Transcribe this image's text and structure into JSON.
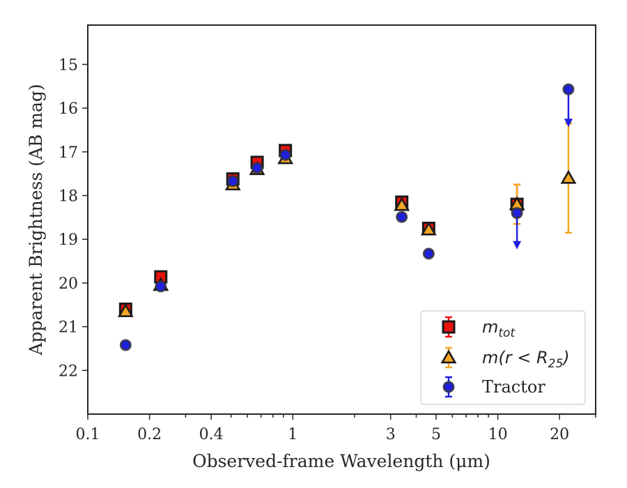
{
  "chart_data": {
    "type": "scatter",
    "xlabel": "Observed-frame Wavelength (μm)",
    "ylabel": "Apparent Brightness (AB mag)",
    "xscale": "log",
    "xlim": [
      0.1,
      30
    ],
    "ylim": [
      23,
      14.1
    ],
    "y_inverted": true,
    "grid": false,
    "legend_placement": "lower-right",
    "x_ticks": [
      {
        "value": 0.1,
        "label": "0.1"
      },
      {
        "value": 0.2,
        "label": "0.2"
      },
      {
        "value": 0.4,
        "label": "0.4"
      },
      {
        "value": 1,
        "label": "1"
      },
      {
        "value": 3,
        "label": "3"
      },
      {
        "value": 5,
        "label": "5"
      },
      {
        "value": 10,
        "label": "10"
      },
      {
        "value": 20,
        "label": "20"
      }
    ],
    "x_minor_ticks": [
      0.3,
      0.5,
      0.6,
      0.7,
      0.8,
      0.9,
      2,
      4,
      6,
      7,
      8,
      9,
      30
    ],
    "y_ticks": [
      {
        "value": 15,
        "label": "15"
      },
      {
        "value": 16,
        "label": "16"
      },
      {
        "value": 17,
        "label": "17"
      },
      {
        "value": 18,
        "label": "18"
      },
      {
        "value": 19,
        "label": "19"
      },
      {
        "value": 20,
        "label": "20"
      },
      {
        "value": 21,
        "label": "21"
      },
      {
        "value": 22,
        "label": "22"
      }
    ],
    "series": [
      {
        "name": "m_tot",
        "legend_main": "m",
        "legend_sub": "tot",
        "marker": "square",
        "color": "#e8130f",
        "edge": "#1a1a1a",
        "points": [
          {
            "x": 0.153,
            "y": 20.6,
            "err": 0.08
          },
          {
            "x": 0.227,
            "y": 19.86,
            "err": 0.07
          },
          {
            "x": 0.51,
            "y": 17.62,
            "err": 0.05
          },
          {
            "x": 0.67,
            "y": 17.24,
            "err": 0.05
          },
          {
            "x": 0.92,
            "y": 16.97,
            "err": 0.05
          },
          {
            "x": 3.4,
            "y": 18.15,
            "err": 0.05
          },
          {
            "x": 4.6,
            "y": 18.75,
            "err": 0.05
          },
          {
            "x": 12.4,
            "y": 18.2,
            "err": 0.45
          }
        ]
      },
      {
        "name": "m(r<R25)",
        "legend_main": "m(r < R",
        "legend_sub": "25",
        "legend_tail": ")",
        "marker": "triangle",
        "color": "#f5a623",
        "edge": "#1a1a1a",
        "points": [
          {
            "x": 0.153,
            "y": 20.65,
            "err": 0.05
          },
          {
            "x": 0.227,
            "y": 20.05,
            "err": 0.05
          },
          {
            "x": 0.51,
            "y": 17.75,
            "err": 0.05
          },
          {
            "x": 0.67,
            "y": 17.4,
            "err": 0.05
          },
          {
            "x": 0.92,
            "y": 17.15,
            "err": 0.05
          },
          {
            "x": 3.4,
            "y": 18.22,
            "err": 0.05
          },
          {
            "x": 4.6,
            "y": 18.78,
            "err": 0.05
          },
          {
            "x": 12.4,
            "y": 18.2,
            "err": 0.45
          },
          {
            "x": 22.1,
            "y": 17.6,
            "err": 1.25
          }
        ]
      },
      {
        "name": "Tractor",
        "legend_main": "Tractor",
        "marker": "circle",
        "color": "#1f1fe0",
        "edge": "#333344",
        "points": [
          {
            "x": 0.153,
            "y": 21.42,
            "err": 0.05
          },
          {
            "x": 0.227,
            "y": 20.08,
            "err": 0.05
          },
          {
            "x": 0.51,
            "y": 17.67,
            "err": 0.05
          },
          {
            "x": 0.67,
            "y": 17.37,
            "err": 0.05
          },
          {
            "x": 0.92,
            "y": 17.07,
            "err": 0.05
          },
          {
            "x": 3.4,
            "y": 18.49,
            "err": 0.05
          },
          {
            "x": 4.6,
            "y": 19.33,
            "err": 0.05
          },
          {
            "x": 12.4,
            "y": 18.4,
            "upper_limit_to": 19.2
          },
          {
            "x": 22.1,
            "y": 15.57,
            "upper_limit_to": 16.4
          }
        ]
      }
    ]
  }
}
